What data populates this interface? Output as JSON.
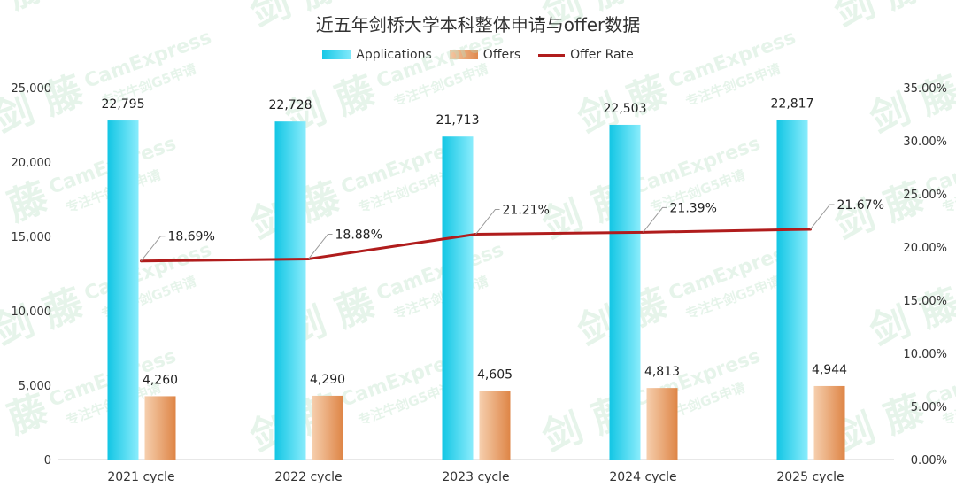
{
  "chart_data": {
    "type": "bar",
    "title": "近五年剑桥大学本科整体申请与offer数据",
    "categories": [
      "2021 cycle",
      "2022 cycle",
      "2023 cycle",
      "2024 cycle",
      "2025 cycle"
    ],
    "series": [
      {
        "name": "Applications",
        "type": "bar",
        "axis": "left",
        "values": [
          22795,
          22728,
          21713,
          22503,
          22817
        ],
        "labels": [
          "22,795",
          "22,728",
          "21,713",
          "22,503",
          "22,817"
        ]
      },
      {
        "name": "Offers",
        "type": "bar",
        "axis": "left",
        "values": [
          4260,
          4290,
          4605,
          4813,
          4944
        ],
        "labels": [
          "4,260",
          "4,290",
          "4,605",
          "4,813",
          "4,944"
        ]
      },
      {
        "name": "Offer Rate",
        "type": "line",
        "axis": "right",
        "values": [
          18.69,
          18.88,
          21.21,
          21.39,
          21.67
        ],
        "labels": [
          "18.69%",
          "18.88%",
          "21.21%",
          "21.39%",
          "21.67%"
        ]
      }
    ],
    "left_axis": {
      "ylim": [
        0,
        25000
      ],
      "ticks": [
        "0",
        "5,000",
        "10,000",
        "15,000",
        "20,000",
        "25,000"
      ]
    },
    "right_axis": {
      "ylim": [
        0,
        35
      ],
      "ticks": [
        "0.00%",
        "5.00%",
        "10.00%",
        "15.00%",
        "20.00%",
        "25.00%",
        "30.00%",
        "35.00%"
      ]
    },
    "legend_position": "top",
    "grid": false,
    "colors": {
      "applications": "#2fd3f0",
      "offers": "#e89a5f",
      "offer_rate": "#b01c1c"
    }
  },
  "watermark": {
    "brand": "剑 藤",
    "name": "CamExpress",
    "tagline": "专注牛剑G5申请"
  }
}
